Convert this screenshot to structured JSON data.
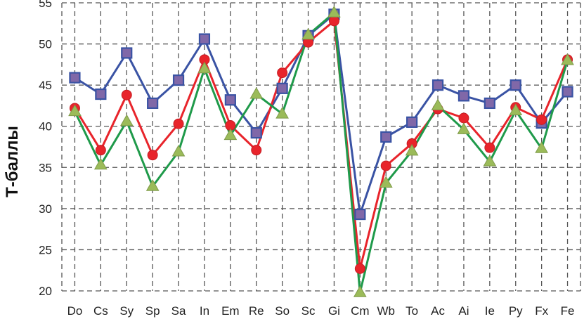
{
  "chart_data": {
    "type": "line",
    "title": "",
    "xlabel": "",
    "ylabel": "Т-баллы",
    "ylim": [
      20,
      55
    ],
    "yticks": [
      20,
      25,
      30,
      35,
      40,
      45,
      50,
      55
    ],
    "grid": true,
    "categories": [
      "Do",
      "Cs",
      "Sy",
      "Sp",
      "Sa",
      "In",
      "Em",
      "Re",
      "So",
      "Sc",
      "Gi",
      "Cm",
      "Wb",
      "To",
      "Ac",
      "Ai",
      "Ie",
      "Py",
      "Fx",
      "Fe"
    ],
    "series": [
      {
        "name": "series-blue-squares",
        "color": "#3a53a4",
        "marker": "square",
        "marker_fill": "#8068a8",
        "values": [
          45.9,
          43.9,
          48.9,
          42.8,
          45.6,
          50.6,
          43.2,
          39.2,
          44.6,
          51.0,
          53.6,
          29.3,
          38.7,
          40.5,
          45.0,
          43.7,
          42.8,
          45.0,
          40.4,
          44.2
        ]
      },
      {
        "name": "series-red-circles",
        "color": "#e8242b",
        "marker": "circle",
        "marker_fill": "#e8242b",
        "values": [
          42.2,
          37.1,
          43.8,
          36.5,
          40.3,
          48.1,
          40.1,
          37.1,
          46.5,
          50.2,
          52.8,
          22.7,
          35.2,
          37.9,
          42.1,
          41.0,
          37.4,
          42.3,
          40.8,
          48.1
        ]
      },
      {
        "name": "series-green-triangles",
        "color": "#1f9a4a",
        "marker": "triangle",
        "marker_fill": "#9bbb59",
        "values": [
          41.8,
          35.3,
          40.6,
          32.7,
          36.9,
          47.0,
          38.9,
          43.9,
          41.5,
          51.1,
          53.8,
          19.8,
          33.1,
          37.0,
          42.5,
          39.6,
          35.7,
          41.9,
          37.3,
          48.0
        ]
      }
    ]
  }
}
